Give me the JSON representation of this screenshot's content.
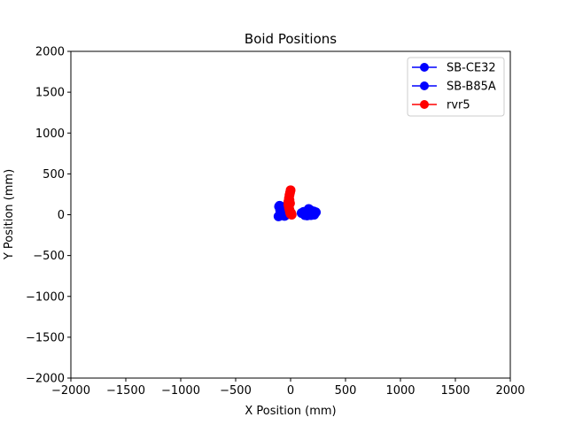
{
  "chart_data": {
    "type": "scatter",
    "title": "Boid Positions",
    "xlabel": "X Position (mm)",
    "ylabel": "Y Position (mm)",
    "xlim": [
      -2000,
      2000
    ],
    "ylim": [
      -2000,
      2000
    ],
    "xticks": [
      -2000,
      -1500,
      -1000,
      -500,
      0,
      500,
      1000,
      1500,
      2000
    ],
    "yticks": [
      -2000,
      -1500,
      -1000,
      -500,
      0,
      500,
      1000,
      1500,
      2000
    ],
    "xtick_labels": [
      "−2000",
      "−1500",
      "−1000",
      "−500",
      "0",
      "500",
      "1000",
      "1500",
      "2000"
    ],
    "ytick_labels": [
      "−2000",
      "−1500",
      "−1000",
      "−500",
      "0",
      "500",
      "1000",
      "1500",
      "2000"
    ],
    "grid": false,
    "legend_position": "top-right",
    "series": [
      {
        "name": "SB-CE32",
        "color": "#0000ff",
        "marker": "circle",
        "points": [
          [
            -105,
            100
          ],
          [
            -95,
            55
          ],
          [
            -90,
            20
          ],
          [
            -110,
            -20
          ],
          [
            -80,
            85
          ],
          [
            -70,
            40
          ],
          [
            -60,
            5
          ],
          [
            -55,
            -15
          ],
          [
            -75,
            65
          ],
          [
            -85,
            -5
          ],
          [
            -65,
            95
          ],
          [
            -50,
            30
          ],
          [
            -40,
            70
          ],
          [
            -45,
            -5
          ],
          [
            -30,
            10
          ],
          [
            -35,
            45
          ],
          [
            -20,
            25
          ],
          [
            -25,
            80
          ],
          [
            -100,
            110
          ],
          [
            -90,
            -10
          ]
        ]
      },
      {
        "name": "SB-B85A",
        "color": "#0000ff",
        "marker": "circle",
        "points": [
          [
            100,
            20
          ],
          [
            120,
            35
          ],
          [
            140,
            10
          ],
          [
            150,
            -10
          ],
          [
            160,
            40
          ],
          [
            165,
            70
          ],
          [
            175,
            30
          ],
          [
            185,
            -5
          ],
          [
            200,
            10
          ],
          [
            210,
            40
          ],
          [
            220,
            20
          ],
          [
            230,
            30
          ],
          [
            180,
            55
          ],
          [
            130,
            -5
          ],
          [
            155,
            15
          ],
          [
            215,
            0
          ]
        ]
      },
      {
        "name": "rvr5",
        "color": "#ff0000",
        "marker": "circle",
        "points": [
          [
            0,
            300
          ],
          [
            -5,
            270
          ],
          [
            -10,
            240
          ],
          [
            -15,
            200
          ],
          [
            -20,
            160
          ],
          [
            -20,
            120
          ],
          [
            -15,
            90
          ],
          [
            -10,
            60
          ],
          [
            -5,
            30
          ],
          [
            0,
            10
          ],
          [
            10,
            0
          ],
          [
            5,
            20
          ],
          [
            -10,
            180
          ],
          [
            -5,
            140
          ]
        ]
      }
    ]
  }
}
